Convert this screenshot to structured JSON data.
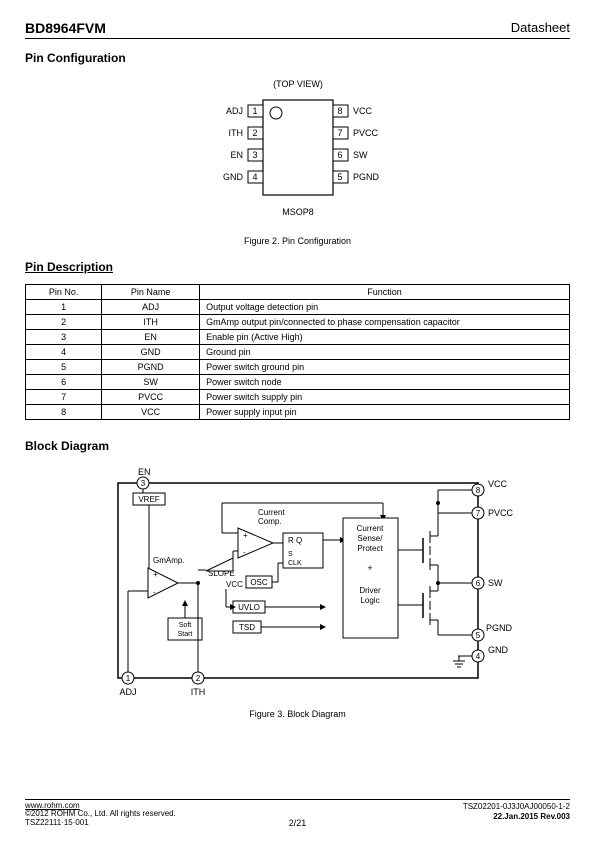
{
  "header": {
    "part": "BD8964FVM",
    "doctype": "Datasheet"
  },
  "sections": {
    "pinconfig": "Pin Configuration",
    "pindesc": "Pin Description",
    "blockdiag": "Block Diagram"
  },
  "pinconfig": {
    "topview": "(TOP VIEW)",
    "package": "MSOP8",
    "caption": "Figure 2. Pin Configuration",
    "left": [
      {
        "n": "1",
        "name": "ADJ"
      },
      {
        "n": "2",
        "name": "ITH"
      },
      {
        "n": "3",
        "name": "EN"
      },
      {
        "n": "4",
        "name": "GND"
      }
    ],
    "right": [
      {
        "n": "8",
        "name": "VCC"
      },
      {
        "n": "7",
        "name": "PVCC"
      },
      {
        "n": "6",
        "name": "SW"
      },
      {
        "n": "5",
        "name": "PGND"
      }
    ]
  },
  "pintable": {
    "headers": [
      "Pin No.",
      "Pin Name",
      "Function"
    ],
    "rows": [
      [
        "1",
        "ADJ",
        "Output voltage detection pin"
      ],
      [
        "2",
        "ITH",
        "GmAmp output pin/connected to phase compensation capacitor"
      ],
      [
        "3",
        "EN",
        "Enable pin (Active High)"
      ],
      [
        "4",
        "GND",
        "Ground pin"
      ],
      [
        "5",
        "PGND",
        "Power switch ground pin"
      ],
      [
        "6",
        "SW",
        "Power switch node"
      ],
      [
        "7",
        "PVCC",
        "Power switch supply pin"
      ],
      [
        "8",
        "VCC",
        "Power supply input pin"
      ]
    ]
  },
  "blockdiag": {
    "caption": "Figure 3. Block Diagram",
    "labels": {
      "en": "EN",
      "vref": "VREF",
      "gmamp": "GmAmp.",
      "slope": "SLOPE",
      "soft": "Soft\nStart",
      "vcc_internal": "VCC",
      "osc": "OSC",
      "uvlo": "UVLO",
      "tsd": "TSD",
      "curcomp": "Current\nComp.",
      "rq": "R   Q",
      "sclk": "S\nCLK",
      "sense": "Current\nSense/\nProtect\n\n+\n\nDriver\nLogic",
      "adj": "ADJ",
      "ith": "ITH",
      "vcc": "VCC",
      "pvcc": "PVCC",
      "sw": "SW",
      "pgnd": "PGND",
      "gnd": "GND",
      "p1": "1",
      "p2": "2",
      "p3": "3",
      "p4": "4",
      "p5": "5",
      "p6": "6",
      "p7": "7",
      "p8": "8"
    }
  },
  "footer": {
    "url": "www.rohm.com",
    "copyright": "©2012 ROHM Co., Ltd. All rights reserved.",
    "tsz": "TSZ22111·15·001",
    "page": "2/21",
    "docno": "TSZ02201-0J3J0AJ00050-1-2",
    "date": "22.Jan.2015 Rev.003"
  }
}
